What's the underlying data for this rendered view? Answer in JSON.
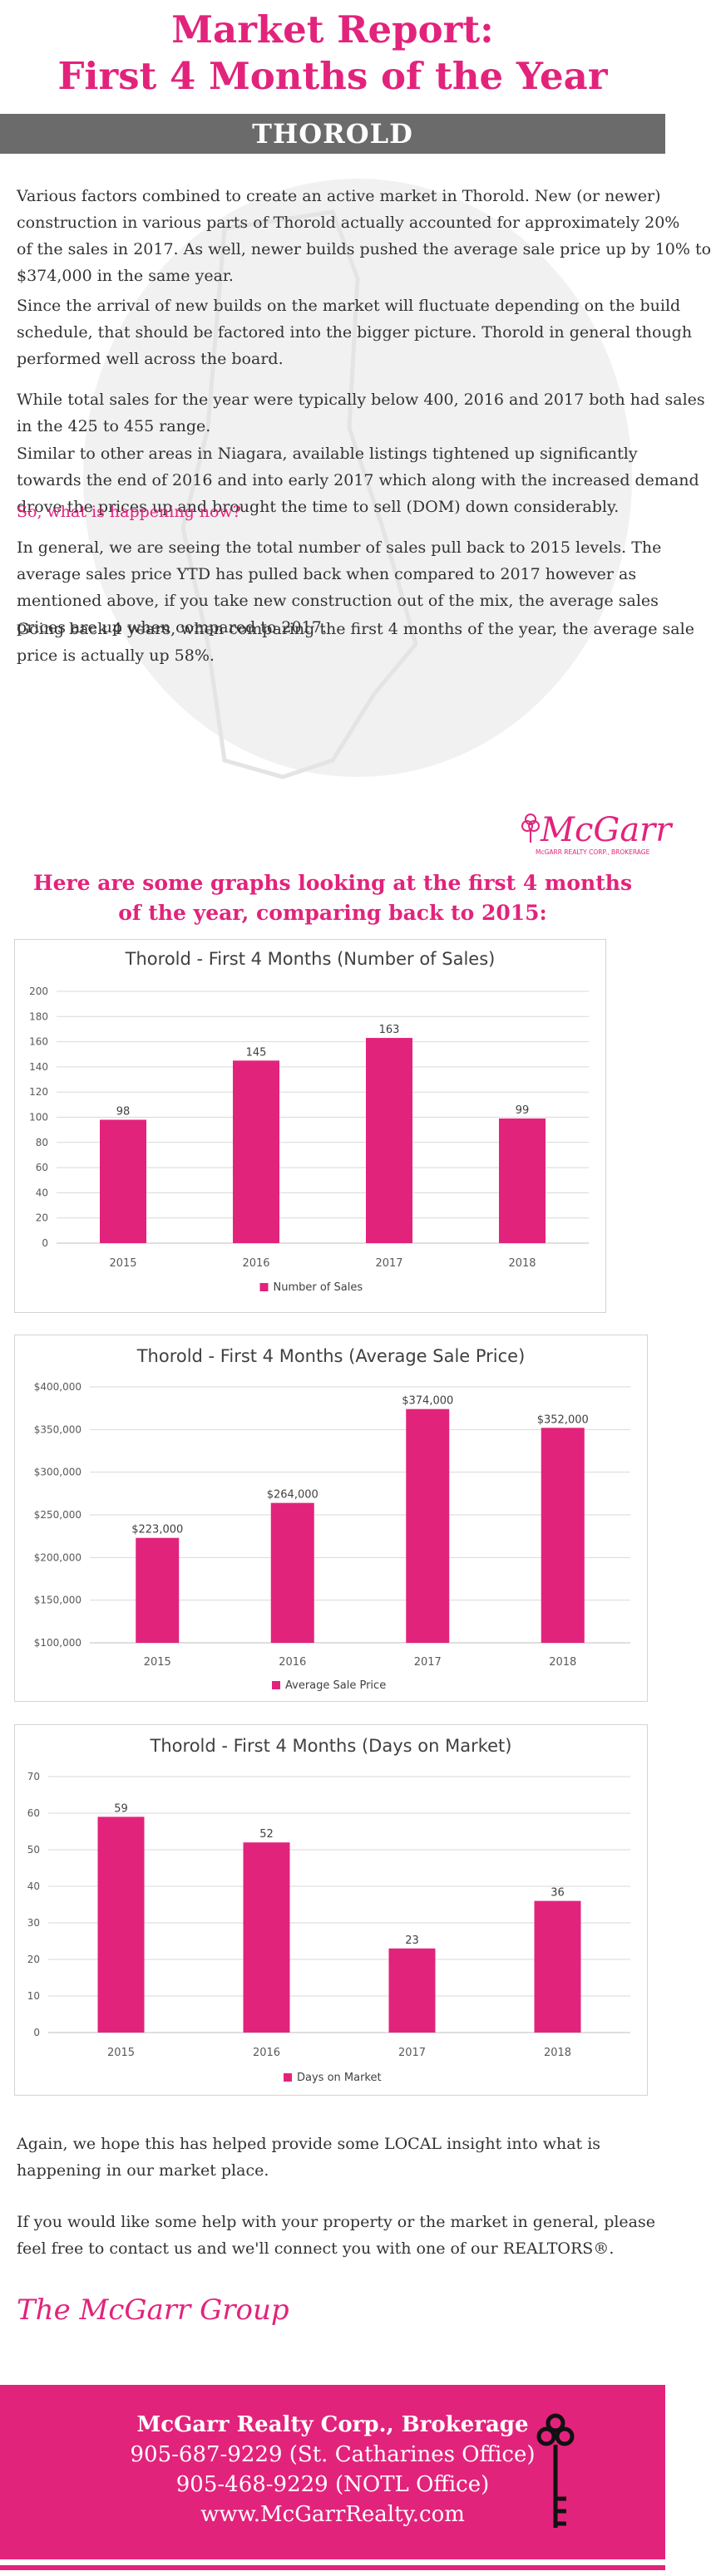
{
  "header": {
    "title_line1": "Market Report:",
    "title_line2": "First 4 Months of the Year",
    "city": "THOROLD"
  },
  "article": {
    "paragraphs": [
      [
        "Various factors combined to create an active market in Thorold. New (or newer)",
        "construction in various parts of Thorold actually accounted for approximately 20%",
        "of the sales in 2017. As well, newer builds pushed the average sale price up by 10% to",
        "$374,000 in the same year."
      ],
      [
        "Since the arrival of new builds on the market will fluctuate depending on the build",
        "schedule, that should be factored into the bigger picture. Thorold in general though",
        "performed well across the board."
      ],
      [
        "While total sales for the year were typically below 400, 2016 and 2017 both had sales",
        "in the 425 to 455 range."
      ],
      [
        "Similar to other areas in Niagara, available listings tightened up significantly",
        "towards the end of 2016 and into early 2017 which along with the increased demand",
        "drove the prices up and brought the time to sell (DOM) down considerably."
      ],
      [
        "So, what is happening now?"
      ],
      [
        "In general, we are seeing the total number of sales pull back to 2015 levels. The",
        "average sales price YTD has pulled back when compared to 2017 however as",
        "mentioned above, if you take new construction out of the mix, the average sales",
        "prices are up when compared to 2017."
      ],
      [
        "Going back 4 years, when comparing the first 4 months of the year, the average sale",
        "price is actually up 58%."
      ]
    ]
  },
  "logo": {
    "text": "McGarr",
    "sub": "McGARR REALTY CORP., BROKERAGE"
  },
  "graphs_heading": {
    "line1": "Here are some graphs looking at the first 4 months",
    "line2": "of the year, comparing back to 2015:"
  },
  "chart_data": [
    {
      "type": "bar",
      "title": "Thorold - First 4 Months (Number of Sales)",
      "categories": [
        "2015",
        "2016",
        "2017",
        "2018"
      ],
      "series": [
        {
          "name": "Number of Sales",
          "values": [
            98,
            145,
            163,
            99
          ]
        }
      ],
      "data_labels": [
        "98",
        "145",
        "163",
        "99"
      ],
      "ylim": [
        0,
        200
      ],
      "yticks": [
        0,
        20,
        40,
        60,
        80,
        100,
        120,
        140,
        160,
        180,
        200
      ],
      "ytick_labels": [
        "0",
        "20",
        "40",
        "60",
        "80",
        "100",
        "120",
        "140",
        "160",
        "180",
        "200"
      ],
      "grid": true,
      "legend": "bottom",
      "color": "#e2237c"
    },
    {
      "type": "bar",
      "title": "Thorold - First 4 Months (Average Sale Price)",
      "categories": [
        "2015",
        "2016",
        "2017",
        "2018"
      ],
      "series": [
        {
          "name": "Average Sale Price",
          "values": [
            223000,
            264000,
            374000,
            352000
          ]
        }
      ],
      "data_labels": [
        "$223,000",
        "$264,000",
        "$374,000",
        "$352,000"
      ],
      "ylim": [
        100000,
        400000
      ],
      "yticks": [
        100000,
        150000,
        200000,
        250000,
        300000,
        350000,
        400000
      ],
      "ytick_labels": [
        "$100,000",
        "$150,000",
        "$200,000",
        "$250,000",
        "$300,000",
        "$350,000",
        "$400,000"
      ],
      "grid": true,
      "legend": "bottom",
      "color": "#e2237c"
    },
    {
      "type": "bar",
      "title": "Thorold - First 4 Months (Days on Market)",
      "categories": [
        "2015",
        "2016",
        "2017",
        "2018"
      ],
      "series": [
        {
          "name": "Days on Market",
          "values": [
            59,
            52,
            23,
            36
          ]
        }
      ],
      "data_labels": [
        "59",
        "52",
        "23",
        "36"
      ],
      "ylim": [
        0,
        70
      ],
      "yticks": [
        0,
        10,
        20,
        30,
        40,
        50,
        60,
        70
      ],
      "ytick_labels": [
        "0",
        "10",
        "20",
        "30",
        "40",
        "50",
        "60",
        "70"
      ],
      "grid": true,
      "legend": "bottom",
      "color": "#e2237c"
    }
  ],
  "closing": {
    "p1_line1": "Again, we hope this has helped provide some LOCAL insight into what is",
    "p1_line2": "happening in our market place.",
    "p2_line1": "If you would like some help with your property or the market in general, please",
    "p2_line2": "feel free to contact us and we'll connect you with one of our REALTORS®."
  },
  "signature": "The McGarr Group",
  "footer": {
    "company": "McGarr Realty Corp., Brokerage",
    "phone1": "905-687-9229 (St. Catharines Office)",
    "phone2": "905-468-9229 (NOTL Office)",
    "website": "www.McGarrRealty.com",
    "icon": "key-icon"
  },
  "colors": {
    "accent": "#e2237c",
    "band": "#6b6b6b",
    "text": "#333333"
  }
}
